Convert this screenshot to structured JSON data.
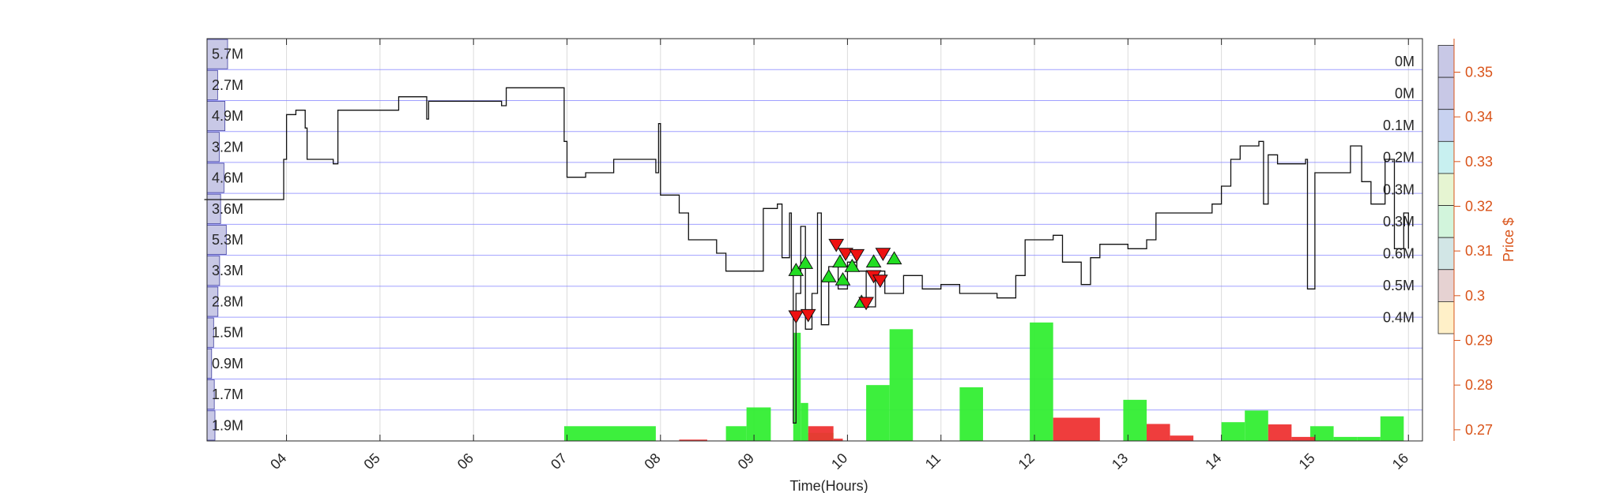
{
  "chart_data": {
    "type": "bar",
    "xlabel": "Time(Hours)",
    "ylabel": "Price $",
    "x_ticks": [
      "04",
      "05",
      "06",
      "07",
      "08",
      "09",
      "10",
      "11",
      "12",
      "13",
      "14",
      "15",
      "16"
    ],
    "xlim": [
      3.15,
      16.15
    ],
    "ylim": [
      0.2675,
      0.3575
    ],
    "y_ticks": [
      0.27,
      0.28,
      0.29,
      0.3,
      0.31,
      0.32,
      0.33,
      0.34,
      0.35
    ],
    "y_tick_labels": [
      "0.27",
      "0.28",
      "0.29",
      "0.3",
      "0.31",
      "0.32",
      "0.33",
      "0.34",
      "0.35"
    ],
    "grid": true,
    "left_volume_profile": {
      "labels": [
        "5.7M",
        "2.7M",
        "4.9M",
        "3.2M",
        "4.6M",
        "3.6M",
        "5.3M",
        "3.3M",
        "2.8M",
        "1.5M",
        "0.9M",
        "1.7M",
        "1.9M"
      ],
      "values_m": [
        5.7,
        2.7,
        4.9,
        3.2,
        4.6,
        3.6,
        5.3,
        3.3,
        2.8,
        1.5,
        0.9,
        1.7,
        1.9
      ]
    },
    "right_volume_profile": {
      "labels": [
        "0M",
        "0M",
        "0.1M",
        "0.2M",
        "0.3M",
        "0.3M",
        "0.6M",
        "0.5M",
        "0.4M"
      ],
      "values_m": [
        0,
        0,
        0.1,
        0.2,
        0.3,
        0.3,
        0.6,
        0.5,
        0.4
      ],
      "colors": [
        "#c8c8e6",
        "#c8c8e6",
        "#c8d2f0",
        "#c8f0f0",
        "#e6f5d2",
        "#d2f5dc",
        "#d2e6e6",
        "#e6d2d2",
        "#fff0c8"
      ]
    },
    "price_series": [
      [
        3.12,
        0.3215
      ],
      [
        3.97,
        0.3215
      ],
      [
        3.97,
        0.3305
      ],
      [
        4.0,
        0.3405
      ],
      [
        4.1,
        0.3415
      ],
      [
        4.2,
        0.3375
      ],
      [
        4.22,
        0.3305
      ],
      [
        4.5,
        0.3295
      ],
      [
        4.55,
        0.3415
      ],
      [
        5.0,
        0.3415
      ],
      [
        5.2,
        0.3445
      ],
      [
        5.5,
        0.3445
      ],
      [
        5.5,
        0.3395
      ],
      [
        5.52,
        0.3435
      ],
      [
        6.3,
        0.3425
      ],
      [
        6.35,
        0.3465
      ],
      [
        6.95,
        0.3465
      ],
      [
        6.97,
        0.3345
      ],
      [
        7.0,
        0.3265
      ],
      [
        7.2,
        0.3275
      ],
      [
        7.5,
        0.3305
      ],
      [
        7.95,
        0.3275
      ],
      [
        7.98,
        0.3385
      ],
      [
        8.0,
        0.3225
      ],
      [
        8.2,
        0.3185
      ],
      [
        8.3,
        0.3125
      ],
      [
        8.6,
        0.3095
      ],
      [
        8.7,
        0.3055
      ],
      [
        9.1,
        0.3055
      ],
      [
        9.1,
        0.3195
      ],
      [
        9.25,
        0.3205
      ],
      [
        9.3,
        0.3085
      ],
      [
        9.38,
        0.3185
      ],
      [
        9.4,
        0.3045
      ],
      [
        9.42,
        0.2715
      ],
      [
        9.45,
        0.3005
      ],
      [
        9.5,
        0.3155
      ],
      [
        9.55,
        0.2925
      ],
      [
        9.62,
        0.3005
      ],
      [
        9.68,
        0.3185
      ],
      [
        9.72,
        0.2935
      ],
      [
        9.8,
        0.3065
      ],
      [
        9.9,
        0.3015
      ],
      [
        10.0,
        0.3075
      ],
      [
        10.1,
        0.3055
      ],
      [
        10.2,
        0.2975
      ],
      [
        10.3,
        0.3055
      ],
      [
        10.4,
        0.3005
      ],
      [
        10.6,
        0.3045
      ],
      [
        10.8,
        0.3015
      ],
      [
        11.0,
        0.3025
      ],
      [
        11.2,
        0.3005
      ],
      [
        11.6,
        0.2995
      ],
      [
        11.8,
        0.3045
      ],
      [
        11.9,
        0.3125
      ],
      [
        12.2,
        0.3135
      ],
      [
        12.3,
        0.3075
      ],
      [
        12.5,
        0.3025
      ],
      [
        12.6,
        0.3085
      ],
      [
        12.7,
        0.3115
      ],
      [
        13.0,
        0.3105
      ],
      [
        13.2,
        0.3125
      ],
      [
        13.3,
        0.3185
      ],
      [
        13.6,
        0.3185
      ],
      [
        13.9,
        0.3205
      ],
      [
        14.0,
        0.3245
      ],
      [
        14.1,
        0.3305
      ],
      [
        14.2,
        0.3335
      ],
      [
        14.4,
        0.3345
      ],
      [
        14.45,
        0.3205
      ],
      [
        14.5,
        0.3315
      ],
      [
        14.6,
        0.3295
      ],
      [
        14.9,
        0.3305
      ],
      [
        14.92,
        0.3015
      ],
      [
        15.0,
        0.3275
      ],
      [
        15.3,
        0.3275
      ],
      [
        15.38,
        0.3335
      ],
      [
        15.5,
        0.3255
      ],
      [
        15.6,
        0.3205
      ],
      [
        15.75,
        0.3305
      ],
      [
        15.85,
        0.3105
      ],
      [
        15.95,
        0.3185
      ],
      [
        16.0,
        0.3105
      ]
    ],
    "buy_markers": [
      [
        9.45,
        0.3056
      ],
      [
        9.55,
        0.3072
      ],
      [
        9.8,
        0.3042
      ],
      [
        9.95,
        0.3035
      ],
      [
        10.15,
        0.2985
      ],
      [
        10.28,
        0.3075
      ],
      [
        10.5,
        0.3082
      ],
      [
        9.92,
        0.3075
      ],
      [
        10.05,
        0.3065
      ]
    ],
    "sell_markers": [
      [
        9.45,
        0.2955
      ],
      [
        9.58,
        0.2958
      ],
      [
        9.88,
        0.3115
      ],
      [
        9.98,
        0.3095
      ],
      [
        10.1,
        0.3092
      ],
      [
        10.2,
        0.2985
      ],
      [
        10.28,
        0.3045
      ],
      [
        10.35,
        0.3035
      ],
      [
        10.38,
        0.3095
      ]
    ],
    "volume_bars_buy": [
      [
        6.97,
        7.95,
        0.0033
      ],
      [
        8.7,
        8.92,
        0.0033
      ],
      [
        8.92,
        9.18,
        0.0075
      ],
      [
        9.42,
        9.5,
        0.0242
      ],
      [
        9.5,
        9.58,
        0.0085
      ],
      [
        9.58,
        9.85,
        0.0018
      ],
      [
        10.2,
        10.45,
        0.0125
      ],
      [
        10.45,
        10.7,
        0.025
      ],
      [
        11.2,
        11.45,
        0.012
      ],
      [
        11.95,
        12.2,
        0.0265
      ],
      [
        12.95,
        13.2,
        0.0092
      ],
      [
        14.0,
        14.25,
        0.0042
      ],
      [
        14.25,
        14.5,
        0.0068
      ],
      [
        14.95,
        15.2,
        0.0033
      ],
      [
        15.2,
        15.45,
        0.0009
      ],
      [
        15.45,
        15.7,
        0.0009
      ],
      [
        15.7,
        15.95,
        0.0055
      ]
    ],
    "volume_bars_sell": [
      [
        9.58,
        9.85,
        0.0033
      ],
      [
        9.85,
        9.95,
        0.0005
      ],
      [
        12.2,
        12.7,
        0.0052
      ],
      [
        13.2,
        13.45,
        0.0038
      ],
      [
        13.45,
        13.7,
        0.0012
      ],
      [
        14.5,
        14.75,
        0.0037
      ],
      [
        14.75,
        15.0,
        0.0009
      ],
      [
        8.2,
        8.5,
        0.0003
      ]
    ]
  }
}
